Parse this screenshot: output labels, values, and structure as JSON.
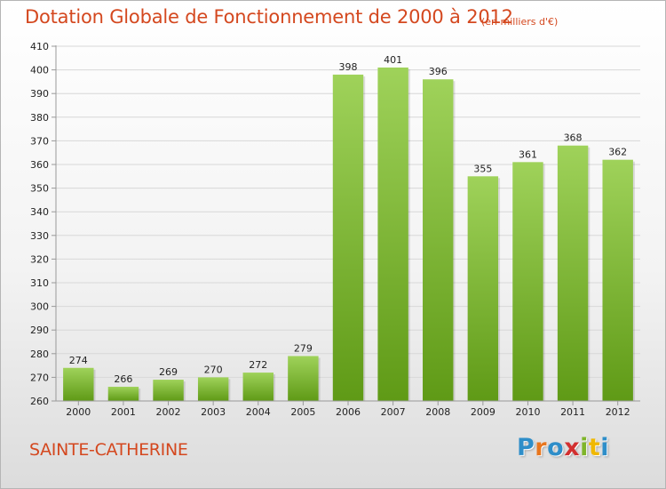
{
  "header": {
    "title": "Dotation Globale de Fonctionnement de 2000 à 2012",
    "units": "(en milliers d'€)"
  },
  "footer": {
    "commune": "SAINTE-CATHERINE",
    "logo": {
      "text": "Proxiti",
      "letter_colors": [
        "#2e8ec9",
        "#e8761e",
        "#2e8ec9",
        "#d22f2f",
        "#7fb52a",
        "#f0b800",
        "#2e8ec9"
      ]
    }
  },
  "colors": {
    "title": "#d4481f",
    "bar_light": "#9fd25a",
    "bar_dark": "#5f9a16",
    "grid": "#d8d8d8",
    "axis_text": "#222222"
  },
  "chart_data": {
    "type": "bar",
    "categories": [
      "2000",
      "2001",
      "2002",
      "2003",
      "2004",
      "2005",
      "2006",
      "2007",
      "2008",
      "2009",
      "2010",
      "2011",
      "2012"
    ],
    "values": [
      274,
      266,
      269,
      270,
      272,
      279,
      398,
      401,
      396,
      355,
      361,
      368,
      362
    ],
    "ylim": [
      260,
      410
    ],
    "ytick_step": 10,
    "grid": true,
    "xlabel": "",
    "ylabel": ""
  }
}
